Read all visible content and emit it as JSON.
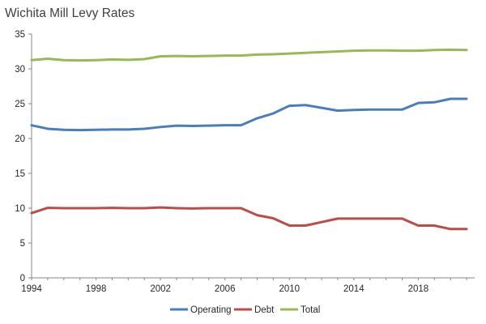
{
  "chart_data": {
    "type": "line",
    "title": "Wichita Mill Levy Rates",
    "xlabel": "",
    "ylabel": "",
    "x": [
      1994,
      1995,
      1996,
      1997,
      1998,
      1999,
      2000,
      2001,
      2002,
      2003,
      2004,
      2005,
      2006,
      2007,
      2008,
      2009,
      2010,
      2011,
      2012,
      2013,
      2014,
      2015,
      2016,
      2017,
      2018,
      2019,
      2020,
      2021
    ],
    "xticks": [
      "1994",
      "1998",
      "2002",
      "2006",
      "2010",
      "2014",
      "2018"
    ],
    "ylim": [
      0,
      35
    ],
    "yticks": [
      "0",
      "5",
      "10",
      "15",
      "20",
      "25",
      "30",
      "35"
    ],
    "grid": false,
    "legend_position": "bottom",
    "series": [
      {
        "name": "Operating",
        "color": "#4a7ebb",
        "values": [
          21.9,
          21.4,
          21.25,
          21.2,
          21.25,
          21.3,
          21.3,
          21.4,
          21.65,
          21.85,
          21.8,
          21.85,
          21.9,
          21.9,
          22.9,
          23.6,
          24.7,
          24.8,
          24.4,
          24.0,
          24.1,
          24.15,
          24.15,
          24.15,
          25.1,
          25.2,
          25.7,
          25.7
        ]
      },
      {
        "name": "Debt",
        "color": "#be4b48",
        "values": [
          9.3,
          10.05,
          10.0,
          10.0,
          10.0,
          10.05,
          10.0,
          10.0,
          10.1,
          10.0,
          9.95,
          10.0,
          10.0,
          10.0,
          9.0,
          8.55,
          7.5,
          7.5,
          8.0,
          8.5,
          8.5,
          8.5,
          8.5,
          8.5,
          7.5,
          7.5,
          7.0,
          7.0
        ]
      },
      {
        "name": "Total",
        "color": "#98b954",
        "values": [
          31.25,
          31.45,
          31.25,
          31.2,
          31.25,
          31.35,
          31.3,
          31.4,
          31.8,
          31.85,
          31.8,
          31.85,
          31.9,
          31.9,
          32.05,
          32.1,
          32.2,
          32.3,
          32.4,
          32.5,
          32.6,
          32.65,
          32.65,
          32.6,
          32.6,
          32.7,
          32.75,
          32.7
        ]
      }
    ]
  }
}
